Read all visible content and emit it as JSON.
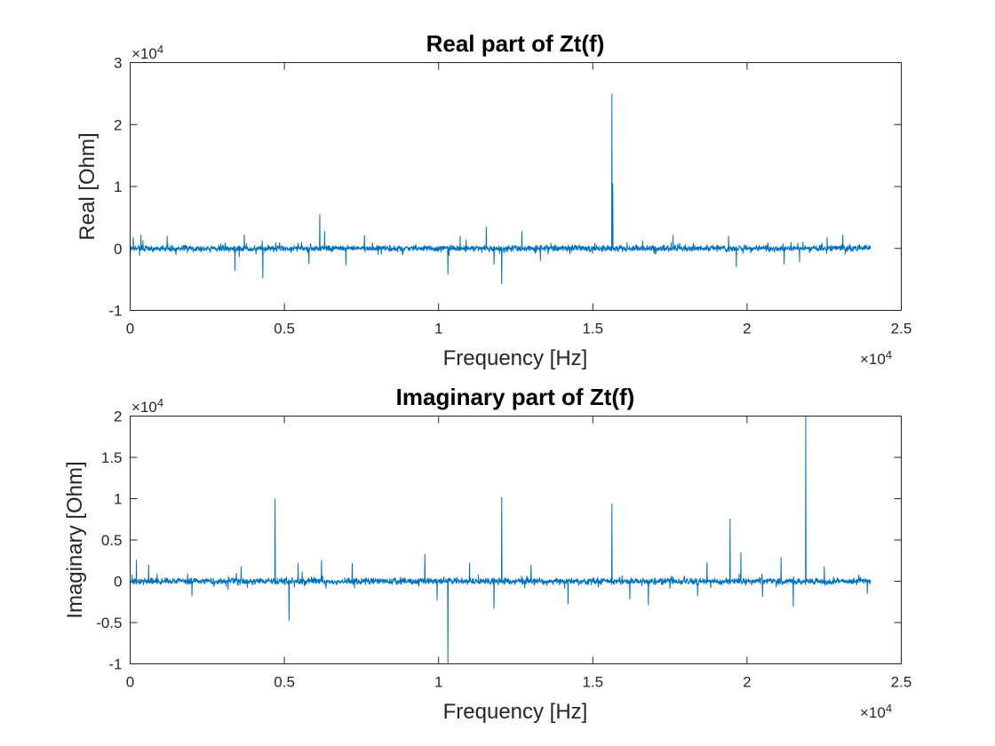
{
  "chart_data": [
    {
      "type": "line",
      "title": "Real part of Zt(f)",
      "xlabel": "Frequency [Hz]",
      "ylabel": "Real [Ohm]",
      "x_exponent": "×10",
      "x_exponent_power": "4",
      "y_exponent": "×10",
      "y_exponent_power": "4",
      "xlim": [
        0,
        25000
      ],
      "ylim": [
        -10000,
        30000
      ],
      "xticks": [
        0,
        5000,
        10000,
        15000,
        20000,
        25000
      ],
      "xtick_labels": [
        "0",
        "0.5",
        "1",
        "1.5",
        "2",
        "2.5"
      ],
      "yticks": [
        -10000,
        0,
        10000,
        20000,
        30000
      ],
      "ytick_labels": [
        "-1",
        "0",
        "1",
        "2",
        "3"
      ],
      "line_color": "#0072BD",
      "x_max_data": 24000,
      "noise_amplitude": 900,
      "spikes": [
        {
          "x": 100,
          "y": 1800
        },
        {
          "x": 350,
          "y": 2200
        },
        {
          "x": 1200,
          "y": 2000
        },
        {
          "x": 3400,
          "y": -3600
        },
        {
          "x": 3700,
          "y": 2300
        },
        {
          "x": 4300,
          "y": -4800
        },
        {
          "x": 5800,
          "y": -2500
        },
        {
          "x": 6150,
          "y": 5500
        },
        {
          "x": 6300,
          "y": 2800
        },
        {
          "x": 7000,
          "y": -2700
        },
        {
          "x": 7600,
          "y": 2100
        },
        {
          "x": 10300,
          "y": -4200
        },
        {
          "x": 10700,
          "y": 2000
        },
        {
          "x": 11550,
          "y": 3500
        },
        {
          "x": 11800,
          "y": -2600
        },
        {
          "x": 12050,
          "y": -5800
        },
        {
          "x": 12700,
          "y": 2800
        },
        {
          "x": 13300,
          "y": -2000
        },
        {
          "x": 15620,
          "y": 25000
        },
        {
          "x": 15650,
          "y": 10500
        },
        {
          "x": 17600,
          "y": 2200
        },
        {
          "x": 19400,
          "y": 2000
        },
        {
          "x": 19650,
          "y": -3000
        },
        {
          "x": 21200,
          "y": -2600
        },
        {
          "x": 21700,
          "y": -2200
        },
        {
          "x": 22600,
          "y": 1800
        },
        {
          "x": 23100,
          "y": 2200
        }
      ]
    },
    {
      "type": "line",
      "title": "Imaginary part of Zt(f)",
      "xlabel": "Frequency [Hz]",
      "ylabel": "Imaginary [Ohm]",
      "x_exponent": "×10",
      "x_exponent_power": "4",
      "y_exponent": "×10",
      "y_exponent_power": "4",
      "xlim": [
        0,
        25000
      ],
      "ylim": [
        -10000,
        20000
      ],
      "xticks": [
        0,
        5000,
        10000,
        15000,
        20000,
        25000
      ],
      "xtick_labels": [
        "0",
        "0.5",
        "1",
        "1.5",
        "2",
        "2.5"
      ],
      "yticks": [
        -10000,
        -5000,
        0,
        5000,
        10000,
        15000,
        20000
      ],
      "ytick_labels": [
        "-1",
        "-0.5",
        "0",
        "0.5",
        "1",
        "1.5",
        "2"
      ],
      "line_color": "#0072BD",
      "x_max_data": 24000,
      "noise_amplitude": 700,
      "spikes": [
        {
          "x": 200,
          "y": 2600
        },
        {
          "x": 600,
          "y": 2000
        },
        {
          "x": 2000,
          "y": -1800
        },
        {
          "x": 3600,
          "y": 1800
        },
        {
          "x": 4700,
          "y": 10000
        },
        {
          "x": 5150,
          "y": -4800
        },
        {
          "x": 5450,
          "y": 2200
        },
        {
          "x": 6200,
          "y": 2600
        },
        {
          "x": 7200,
          "y": 2200
        },
        {
          "x": 9550,
          "y": 3300
        },
        {
          "x": 9950,
          "y": -2300
        },
        {
          "x": 10300,
          "y": -10000
        },
        {
          "x": 11000,
          "y": 2200
        },
        {
          "x": 11800,
          "y": -3300
        },
        {
          "x": 12050,
          "y": 10200
        },
        {
          "x": 13000,
          "y": 2000
        },
        {
          "x": 14200,
          "y": -2800
        },
        {
          "x": 15620,
          "y": 9400
        },
        {
          "x": 16200,
          "y": -2200
        },
        {
          "x": 16800,
          "y": -2900
        },
        {
          "x": 18400,
          "y": -1800
        },
        {
          "x": 18700,
          "y": 2300
        },
        {
          "x": 19450,
          "y": 7600
        },
        {
          "x": 19800,
          "y": 3500
        },
        {
          "x": 20500,
          "y": -1900
        },
        {
          "x": 21100,
          "y": 2900
        },
        {
          "x": 21500,
          "y": -3100
        },
        {
          "x": 21900,
          "y": 20000
        },
        {
          "x": 22500,
          "y": 1800
        },
        {
          "x": 23900,
          "y": -1500
        }
      ]
    }
  ]
}
